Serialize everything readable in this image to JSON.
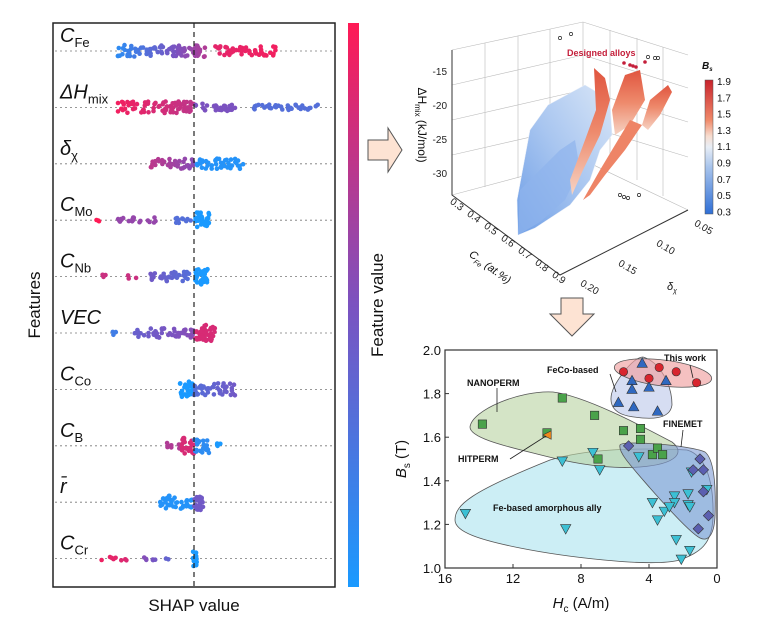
{
  "chart_data": [
    {
      "type": "scatter",
      "subtype": "shap-beeswarm",
      "xlabel": "SHAP value",
      "ylabel": "Features",
      "colorbar_label": "Feature value",
      "colorbar_colors": {
        "low": "#1a9aff",
        "mid": "#7b52c0",
        "high": "#ff1a55"
      },
      "zero_line": "dashed",
      "features": [
        {
          "label": "C",
          "sub": "Fe",
          "italic": true,
          "clusters": [
            [
              -0.54,
              0.08,
              0.1,
              0.7,
              90
            ],
            [
              0.15,
              0.58,
              0.9,
              0.95,
              50
            ]
          ]
        },
        {
          "label": "ΔH",
          "sub": "mix",
          "italic": true,
          "clusters": [
            [
              -0.54,
              0,
              0.95,
              0.75,
              80
            ],
            [
              0,
              0.31,
              0.5,
              0.5,
              30
            ],
            [
              0.38,
              0.88,
              0.3,
              0.3,
              35
            ]
          ]
        },
        {
          "label": "δ",
          "sub": "χ",
          "italic": true,
          "clusters": [
            [
              -0.31,
              0,
              0.75,
              0.55,
              40
            ],
            [
              0,
              0.35,
              0.05,
              0.05,
              45
            ]
          ]
        },
        {
          "label": "C",
          "sub": "Mo",
          "italic": true,
          "clusters": [
            [
              -0.72,
              -0.66,
              1,
              1,
              3
            ],
            [
              -0.54,
              -0.26,
              0.6,
              0.6,
              20
            ],
            [
              -0.13,
              -0.01,
              0.3,
              0.3,
              10
            ],
            [
              0.01,
              0.11,
              0,
              0,
              35
            ]
          ]
        },
        {
          "label": "C",
          "sub": "Nb",
          "italic": true,
          "clusters": [
            [
              -0.65,
              -0.38,
              0.8,
              0.8,
              6
            ],
            [
              -0.31,
              -0.03,
              0.45,
              0.3,
              35
            ],
            [
              0.01,
              0.1,
              0,
              0,
              35
            ]
          ]
        },
        {
          "label": "VEC",
          "sub": "",
          "italic": true,
          "clusters": [
            [
              -0.58,
              -0.54,
              0.2,
              0.2,
              3
            ],
            [
              -0.42,
              0,
              0.4,
              0.55,
              50
            ],
            [
              0,
              0.15,
              0.85,
              0.85,
              40
            ]
          ]
        },
        {
          "label": "C",
          "sub": "Co",
          "italic": true,
          "clusters": [
            [
              -0.1,
              0,
              0,
              0,
              30
            ],
            [
              0,
              0.29,
              0.3,
              0.45,
              45
            ]
          ]
        },
        {
          "label": "C",
          "sub": "B",
          "italic": true,
          "clusters": [
            [
              -0.2,
              -0.08,
              0.7,
              0.7,
              10
            ],
            [
              -0.09,
              0,
              0.85,
              0.85,
              25
            ],
            [
              0,
              0.11,
              0.1,
              0.1,
              25
            ],
            [
              0.15,
              0.2,
              0,
              0,
              5
            ]
          ]
        },
        {
          "label": "r̄",
          "sub": "",
          "italic": true,
          "clusters": [
            [
              -0.24,
              -0.01,
              0.05,
              0.05,
              40
            ],
            [
              -0.01,
              0.07,
              0.45,
              0.45,
              25
            ]
          ]
        },
        {
          "label": "C",
          "sub": "Cr",
          "italic": true,
          "clusters": [
            [
              -0.7,
              -0.44,
              0.95,
              0.85,
              8
            ],
            [
              -0.37,
              -0.16,
              0.55,
              0.35,
              8
            ],
            [
              -0.01,
              0.02,
              0,
              0,
              15
            ]
          ]
        }
      ]
    },
    {
      "type": "surface3d",
      "zlabel": "ΔH",
      "zlabel_sub": "mix",
      "zlabel_unit": " (kJ/mol)",
      "xlabel": "C",
      "xlabel_sub": "Fe",
      "xlabel_unit": " (at.%)",
      "ylabel": "δ",
      "ylabel_sub": "χ",
      "z_ticks": [
        "-15",
        "-20",
        "-25",
        "-30"
      ],
      "x_ticks": [
        "0.3",
        "0.4",
        "0.5",
        "0.6",
        "0.7",
        "0.8",
        "0.9"
      ],
      "y_ticks": [
        "0.20",
        "0.15",
        "0.10",
        "0.05"
      ],
      "annotation": "Designed alloys",
      "colorbar_title": "B",
      "colorbar_title_sub": "s",
      "colorbar_ticks": [
        "1.9",
        "1.7",
        "1.5",
        "1.3",
        "1.1",
        "0.9",
        "0.7",
        "0.5",
        "0.3"
      ],
      "colormap": {
        "low": "#2f6fd6",
        "mid": "#eef0f4",
        "high": "#c8232c"
      },
      "designed_color": "#c41e3a"
    },
    {
      "type": "scatter",
      "xlabel": "H",
      "xlabel_sub": "c",
      "xlabel_unit": " (A/m)",
      "ylabel": "B",
      "ylabel_sub": "s",
      "ylabel_unit": " (T)",
      "xlim": [
        16,
        0
      ],
      "ylim": [
        1.0,
        2.0
      ],
      "x_ticks": [
        "16",
        "12",
        "8",
        "4",
        "0"
      ],
      "y_ticks": [
        "1.0",
        "1.2",
        "1.4",
        "1.6",
        "1.8",
        "2.0"
      ],
      "groups": [
        {
          "name": "Fe-based amorphous ally",
          "marker": "triangle-down",
          "color": "#3cc0d4",
          "region": "#bfeaf2",
          "points": [
            [
              14.8,
              1.25
            ],
            [
              8.9,
              1.18
            ],
            [
              9.1,
              1.49
            ],
            [
              7.3,
              1.53
            ],
            [
              6.9,
              1.45
            ],
            [
              4.6,
              1.51
            ],
            [
              3.8,
              1.3
            ],
            [
              3.5,
              1.22
            ],
            [
              3.1,
              1.26
            ],
            [
              2.5,
              1.33
            ],
            [
              2.5,
              1.3
            ],
            [
              1.7,
              1.34
            ],
            [
              1.7,
              1.29
            ],
            [
              1.6,
              1.28
            ],
            [
              0.6,
              1.36
            ],
            [
              1.5,
              1.44
            ],
            [
              2.4,
              1.13
            ],
            [
              1.6,
              1.08
            ],
            [
              2.1,
              1.04
            ],
            [
              2.8,
              1.28
            ]
          ]
        },
        {
          "name": "NANOPERM",
          "marker": "square",
          "color": "#4aa24a",
          "region": "#c9dcb4",
          "points": [
            [
              13.8,
              1.66
            ],
            [
              9.1,
              1.78
            ],
            [
              7.2,
              1.7
            ],
            [
              10.0,
              1.62
            ],
            [
              5.5,
              1.63
            ],
            [
              4.5,
              1.64
            ],
            [
              4.5,
              1.59
            ],
            [
              3.8,
              1.52
            ],
            [
              3.5,
              1.55
            ],
            [
              3.2,
              1.52
            ],
            [
              7.0,
              1.5
            ]
          ]
        },
        {
          "name": "FINEMET",
          "marker": "diamond",
          "color": "#5b5fb0",
          "region": "#8fa8d8",
          "points": [
            [
              5.2,
              1.56
            ],
            [
              1.0,
              1.5
            ],
            [
              0.8,
              1.45
            ],
            [
              1.4,
              1.45
            ],
            [
              0.8,
              1.35
            ],
            [
              0.5,
              1.24
            ],
            [
              1.1,
              1.18
            ]
          ]
        },
        {
          "name": "FeCo-based",
          "marker": "triangle-up",
          "color": "#2f68c0",
          "region": "#c8d2ee",
          "points": [
            [
              5.0,
              1.86
            ],
            [
              5.0,
              1.82
            ],
            [
              4.0,
              1.83
            ],
            [
              5.8,
              1.76
            ],
            [
              4.9,
              1.74
            ],
            [
              3.5,
              1.72
            ],
            [
              4.4,
              1.94
            ],
            [
              3.0,
              1.86
            ]
          ]
        },
        {
          "name": "HITPERM",
          "marker": "triangle-left",
          "color": "#f08a1c",
          "region": "",
          "points": [
            [
              10.0,
              1.61
            ]
          ]
        },
        {
          "name": "This work",
          "marker": "circle",
          "color": "#d8252e",
          "region": "#f0a8a0",
          "label_color": "#c41e2a",
          "points": [
            [
              5.5,
              1.9
            ],
            [
              4.0,
              1.87
            ],
            [
              3.4,
              1.92
            ],
            [
              2.4,
              1.9
            ],
            [
              1.2,
              1.85
            ]
          ]
        }
      ]
    }
  ],
  "arrows": {
    "fill": "#fde3d3",
    "stroke": "#555555"
  }
}
